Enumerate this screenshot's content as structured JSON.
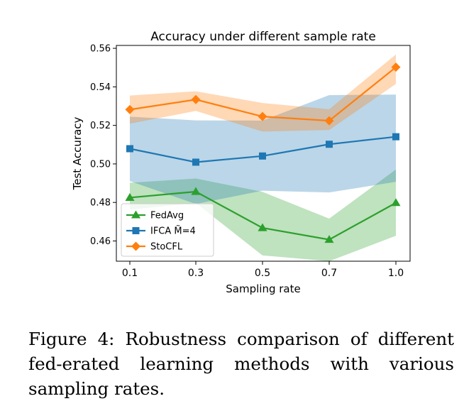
{
  "chart_data": {
    "type": "line",
    "title": "Accuracy under different sample rate",
    "xlabel": "Sampling rate",
    "ylabel": "Test Accuracy",
    "categories": [
      "0.1",
      "0.3",
      "0.5",
      "0.7",
      "1.0"
    ],
    "ylim": [
      0.4495,
      0.5615
    ],
    "yticks": [
      "0.46",
      "0.48",
      "0.50",
      "0.52",
      "0.54",
      "0.56"
    ],
    "grid": false,
    "legend_position": "lower-left",
    "series": [
      {
        "name": "FedAvg",
        "color": "#2ca02c",
        "marker": "triangle",
        "values": [
          0.4825,
          0.4856,
          0.4668,
          0.4607,
          0.4798
        ],
        "lower": [
          0.4762,
          0.4797,
          0.4525,
          0.4495,
          0.4627
        ],
        "upper": [
          0.4902,
          0.4924,
          0.4855,
          0.4716,
          0.4971
        ]
      },
      {
        "name": "IFCA M̃=4",
        "color": "#1f77b4",
        "marker": "square",
        "values": [
          0.5079,
          0.5009,
          0.5041,
          0.5102,
          0.5141
        ],
        "lower": [
          0.4911,
          0.4792,
          0.4861,
          0.4852,
          0.4907
        ],
        "upper": [
          0.5245,
          0.5226,
          0.5225,
          0.5357,
          0.536
        ]
      },
      {
        "name": "StoCFL",
        "color": "#ff7f0e",
        "marker": "diamond",
        "values": [
          0.5282,
          0.5334,
          0.5246,
          0.5224,
          0.5502
        ],
        "lower": [
          0.5209,
          0.5275,
          0.5168,
          0.5176,
          0.5415
        ],
        "upper": [
          0.5355,
          0.5377,
          0.5316,
          0.5284,
          0.5568
        ]
      }
    ]
  },
  "caption": {
    "text": "Figure 4: Robustness comparison of different fed-erated learning methods with various sampling rates."
  }
}
